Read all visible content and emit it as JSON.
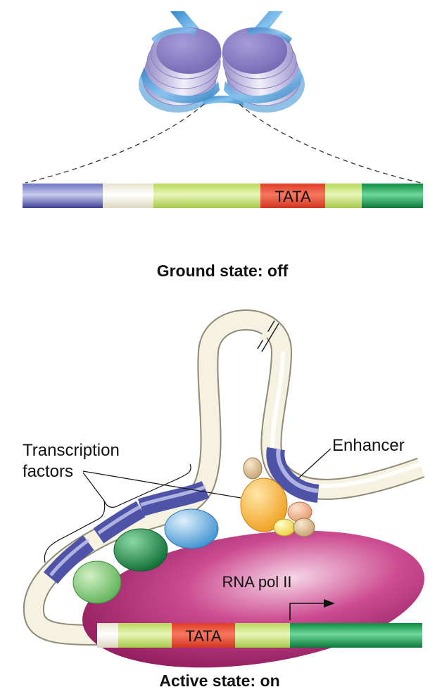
{
  "ground": {
    "caption": "Ground state: off",
    "tata_label": "TATA"
  },
  "active": {
    "caption": "Active state: on",
    "tata_label": "TATA",
    "polymerase_label": "RNA pol II",
    "enhancer_label": "Enhancer",
    "tf_label_line1": "Transcription",
    "tf_label_line2": "factors"
  },
  "colors": {
    "blue_segment": "#4a4fa3",
    "cream_segment": "#f3efdf",
    "lime_segment": "#c6e26a",
    "tata_red": "#e8452f",
    "green_segment": "#12a04e",
    "histone": "#8a7fc4",
    "dna_wrap": "#3b9ad8",
    "polymerase": "#b5307a"
  }
}
